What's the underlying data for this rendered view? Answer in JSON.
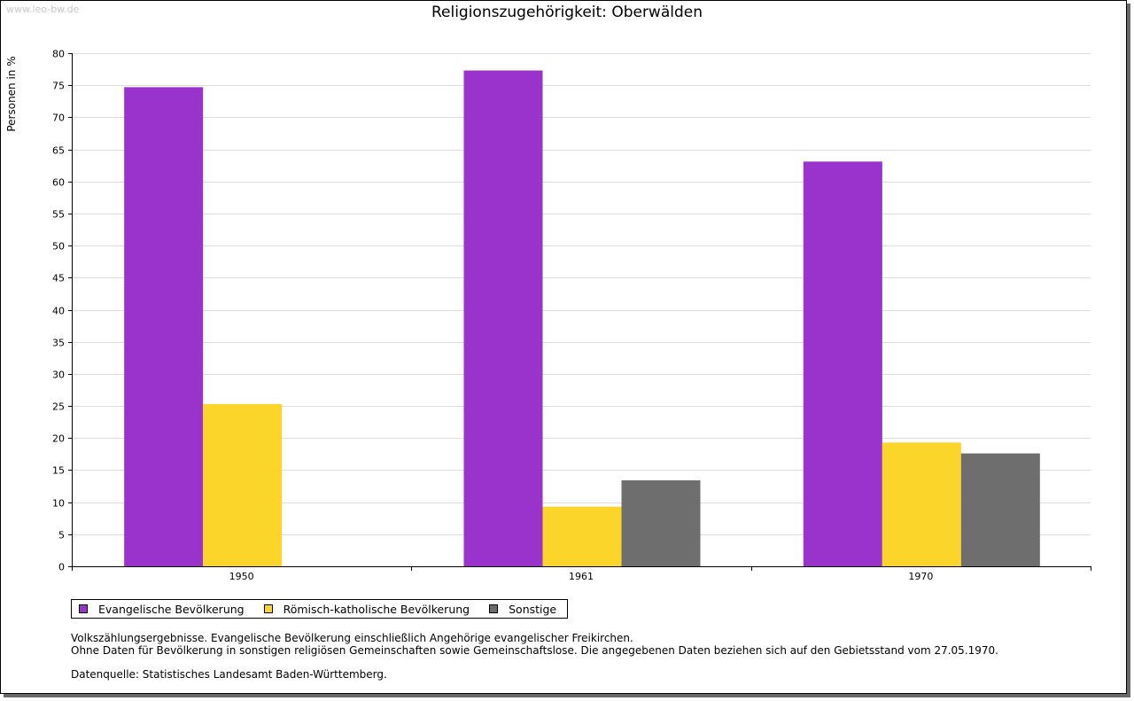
{
  "watermark": "www.leo-bw.de",
  "chart_data": {
    "type": "bar",
    "title": "Religionszugehörigkeit: Oberwälden",
    "ylabel": "Personen in %",
    "xlabel": "",
    "ylim": [
      0,
      80
    ],
    "yticks": [
      0,
      5,
      10,
      15,
      20,
      25,
      30,
      35,
      40,
      45,
      50,
      55,
      60,
      65,
      70,
      75,
      80
    ],
    "grid": true,
    "categories": [
      "1950",
      "1961",
      "1970"
    ],
    "series": [
      {
        "name": "Evangelische Bevölkerung",
        "color": "#9933cc",
        "values": [
          74.7,
          77.3,
          63.1
        ]
      },
      {
        "name": "Römisch-katholische Bevölkerung",
        "color": "#fcd52a",
        "values": [
          25.3,
          9.3,
          19.3
        ]
      },
      {
        "name": "Sonstige",
        "color": "#6e6e6e",
        "values": [
          null,
          13.4,
          17.6
        ]
      }
    ],
    "legend_position": "bottom-left"
  },
  "notes": {
    "line1": "Volkszählungsergebnisse. Evangelische Bevölkerung einschließlich Angehörige evangelischer Freikirchen.",
    "line2": "Ohne Daten für Bevölkerung in sonstigen religiösen Gemeinschaften sowie Gemeinschaftslose. Die angegebenen Daten beziehen sich auf den Gebietsstand vom 27.05.1970.",
    "source": "Datenquelle: Statistisches Landesamt Baden-Württemberg."
  }
}
